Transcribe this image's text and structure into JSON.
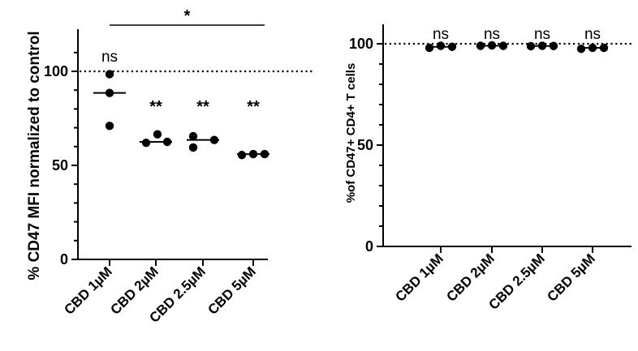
{
  "chart_data": [
    {
      "type": "scatter",
      "ylabel": "% CD47 MFI normalized to control",
      "categories": [
        "CBD 1µM",
        "CBD 2µM",
        "CBD 2.5µM",
        "CBD 5µM"
      ],
      "yticks": [
        0,
        50,
        100
      ],
      "ylim": [
        0,
        100
      ],
      "reference_line": 100,
      "series": [
        {
          "category": "CBD 1µM",
          "points": [
            98.5,
            88.5,
            71.0
          ],
          "median": 88.5,
          "annotation": "ns"
        },
        {
          "category": "CBD 2µM",
          "points": [
            62.0,
            66.5,
            62.5
          ],
          "median": 62.5,
          "annotation": "**"
        },
        {
          "category": "CBD 2.5µM",
          "points": [
            65.5,
            59.5,
            63.5
          ],
          "median": 63.5,
          "annotation": "**"
        },
        {
          "category": "CBD 5µM",
          "points": [
            55.5,
            56.0,
            56.0
          ],
          "median": 56.0,
          "annotation": "**"
        }
      ],
      "bracket": {
        "from": "CBD 1µM",
        "to": "CBD 5µM",
        "label": "*"
      },
      "grid": false
    },
    {
      "type": "scatter",
      "ylabel": "%of CD47+ CD4+ T cells",
      "categories": [
        "CBD 1µM",
        "CBD 2µM",
        "CBD 2.5µM",
        "CBD 5µM"
      ],
      "yticks": [
        0,
        50,
        100
      ],
      "ylim": [
        0,
        100
      ],
      "reference_line": 100,
      "series": [
        {
          "category": "CBD 1µM",
          "points": [
            98.0,
            99.0,
            98.5
          ],
          "median": 98.5,
          "annotation": "ns"
        },
        {
          "category": "CBD 2µM",
          "points": [
            99.0,
            99.2,
            99.0
          ],
          "median": 99.0,
          "annotation": "ns"
        },
        {
          "category": "CBD 2.5µM",
          "points": [
            98.8,
            99.0,
            98.9
          ],
          "median": 98.9,
          "annotation": "ns"
        },
        {
          "category": "CBD 5µM",
          "points": [
            97.5,
            98.0,
            98.0
          ],
          "median": 98.0,
          "annotation": "ns"
        }
      ],
      "grid": false
    }
  ]
}
